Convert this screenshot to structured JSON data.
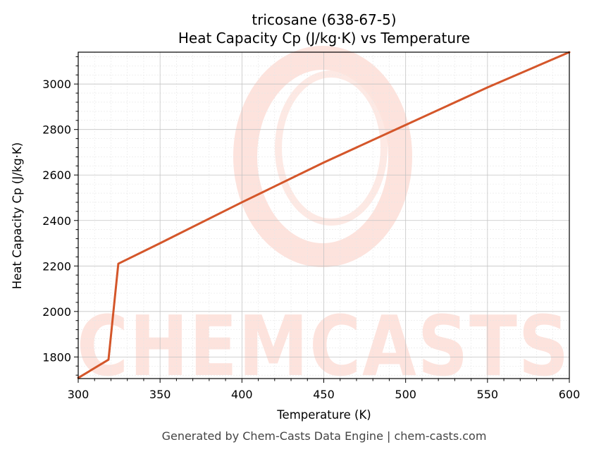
{
  "chart_data": {
    "type": "line",
    "title": "tricosane (638-67-5)",
    "subtitle": "Heat Capacity Cp (J/kg·K) vs Temperature",
    "xlabel": "Temperature (K)",
    "ylabel": "Heat Capacity Cp (J/kg·K)",
    "xlim": [
      300,
      600
    ],
    "ylim": [
      1705,
      3140
    ],
    "x_ticks": [
      300,
      350,
      400,
      450,
      500,
      550,
      600
    ],
    "y_ticks": [
      1800,
      2000,
      2200,
      2400,
      2600,
      2800,
      3000
    ],
    "grid": true,
    "series": [
      {
        "color": "#d4562a",
        "x": [
          300,
          318.5,
          324.5,
          350,
          400,
          450,
          500,
          550,
          600
        ],
        "y": [
          1708,
          1788,
          2210,
          2300,
          2480,
          2655,
          2820,
          2985,
          3140
        ]
      }
    ]
  },
  "watermark": {
    "text": "CHEMCASTS",
    "color": "#fde3dd"
  },
  "footer": "Generated by Chem-Casts Data Engine | chem-casts.com"
}
